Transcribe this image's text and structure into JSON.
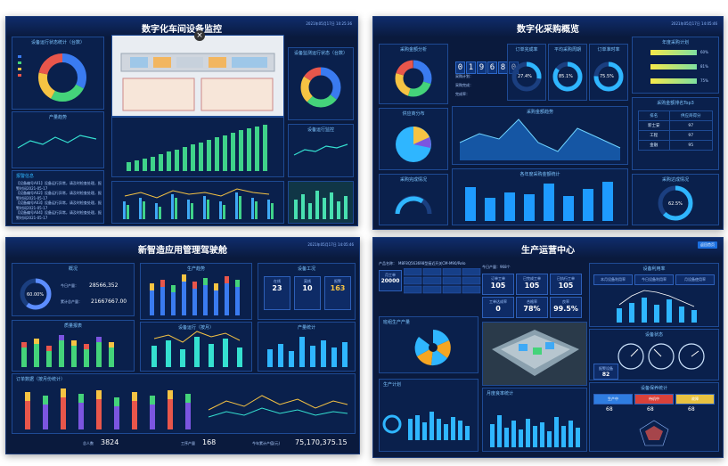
{
  "screens": {
    "workshop": {
      "title": "数字化车间设备监控",
      "time": "2021年05月17日 10:25:36",
      "panels": {
        "chart1": "设备运行状态统计（台数）",
        "line1": "产量趋势",
        "line2": "设备运行监控",
        "bars": "设备利用率统计",
        "right_top": "设备监测运行状态（台数）",
        "right_mid": "设备运行状态分布",
        "right_bot": "设备运行效率",
        "info": "报警信息"
      },
      "info_lines": [
        "【设备编号A01】设备运行异常，请及时检查处理，报警时间2021-05-17",
        "【设备编号A02】设备运行异常，请及时检查处理，报警时间2021-05-17",
        "【设备编号A03】设备运行异常，请及时检查处理，报警时间2021-05-17",
        "【设备编号A04】设备运行异常，请及时检查处理，报警时间2021-05-17"
      ],
      "close_icon": "×"
    },
    "procure": {
      "title": "数字化采购概览",
      "time": "2021年05月17日 14:05:46",
      "digits": [
        "0",
        "1",
        "9",
        "6",
        "8",
        "0"
      ],
      "rings": [
        {
          "label": "订单完成率",
          "value": "27.4%",
          "pct": 0.274
        },
        {
          "label": "平均采购周期",
          "value": "85.1%",
          "pct": 0.851
        },
        {
          "label": "订单准时率",
          "value": "75.5%",
          "pct": 0.755
        }
      ],
      "panels": {
        "left_top": "采购金额分析",
        "left_mid": "供应商分布",
        "left_bot": "采购完成情况",
        "center_mid": "采购金额趋势",
        "center_bot": "各年度采购金额统计",
        "right_top": "年度采购计划",
        "right_mid": "采购金额排名Top3",
        "right_bot": "采购达成情况"
      },
      "bars_pct": [
        "60%",
        "81%",
        "75%"
      ],
      "table": {
        "headers": [
          "排名",
          "供应商得分"
        ],
        "rows": [
          [
            "新士安",
            "97"
          ],
          [
            "工程",
            "97"
          ],
          [
            "金融",
            "95"
          ]
        ]
      },
      "gauge_value": "62.5%",
      "side_labels": [
        "采购计划：",
        "采购完成：",
        "完成率："
      ]
    },
    "smart": {
      "title": "新智造应用管理驾驶舱",
      "time": "2021年05月17日 14:05:46",
      "panels": {
        "a": "概况",
        "b": "生产趋势",
        "c": "设备工况",
        "d": "质量报表",
        "e": "订单数据（按月份统计）",
        "f": "产量统计",
        "g": "设备运行（按月）"
      },
      "ring_value": "60.00%",
      "stat1_label": "今日产量：",
      "stat1_value": "28566,352",
      "stat2_label": "累计总产量：",
      "stat2_value": "21667667.00",
      "cards": [
        {
          "label": "在线",
          "value": "23"
        },
        {
          "label": "离线",
          "value": "10"
        },
        {
          "label": "报警",
          "value": "163"
        }
      ],
      "footer": [
        {
          "label": "总人数",
          "value": "3824"
        },
        {
          "label": "工序产量",
          "value": "168"
        },
        {
          "label": "今年累计产值(元)",
          "value": "75,170,375.15"
        }
      ]
    },
    "ops": {
      "title": "生产运营中心",
      "button": "返回首页",
      "product_label": "产品名称：",
      "product_value": "M8F8Q563698型接近开关CM-M90/Relo",
      "kpi_left": {
        "label": "月工单",
        "value": "20000"
      },
      "kpis": [
        {
          "label": "订单工单",
          "value": "105"
        },
        {
          "label": "已完成工单",
          "value": "105"
        },
        {
          "label": "已执行工单",
          "value": "105"
        },
        {
          "label": "工单达成率",
          "value": "0"
        },
        {
          "label": "合格率",
          "value": "78%"
        },
        {
          "label": "良率",
          "value": "99.5%"
        }
      ],
      "panels": {
        "a": "今日产量：968个",
        "b": "设备利用率",
        "c": "班组生产产量",
        "d": "设备状态",
        "e": "生产计划",
        "f": "月度良率统计",
        "g": "设备保养统计",
        "h": "能耗统计"
      },
      "tags": [
        {
          "label": "生产中",
          "value": "68",
          "color": "#2f7de1"
        },
        {
          "label": "待机中",
          "value": "68",
          "color": "#d9413a"
        },
        {
          "label": "故障",
          "value": "68",
          "color": "#e8c241"
        }
      ],
      "alarm_label": "报警设备",
      "alarm_value": "82",
      "rate_labels": [
        "本月设备利用率",
        "今日设备利用率",
        "月设备使用率"
      ]
    }
  }
}
